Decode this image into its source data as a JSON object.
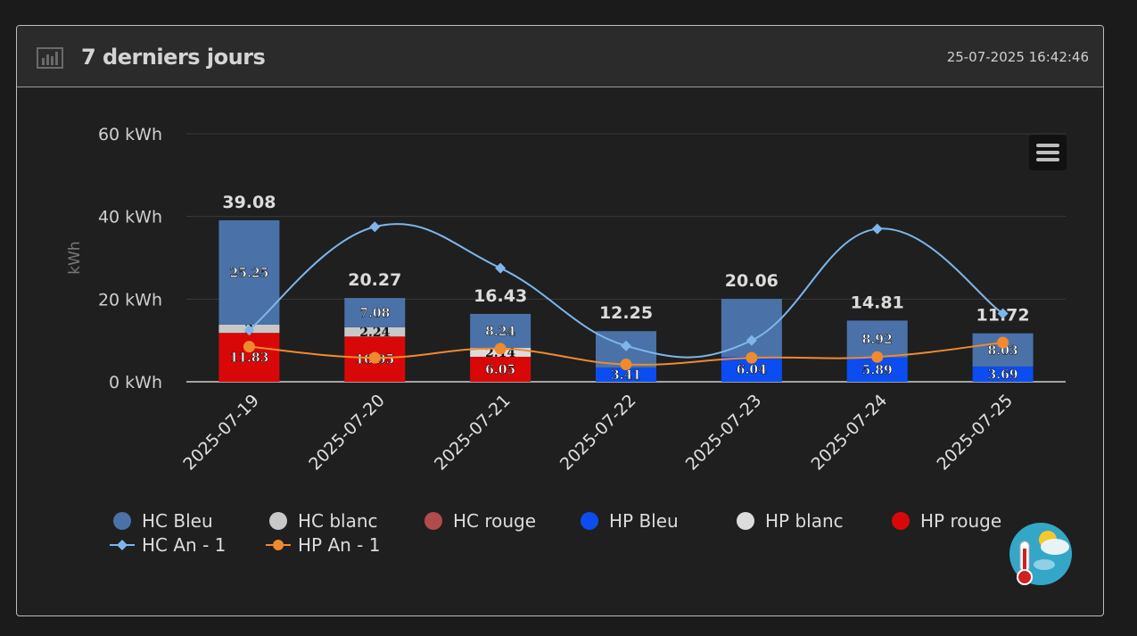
{
  "header": {
    "title": "7 derniers jours",
    "timestamp": "25-07-2025 16:42:46",
    "icon": "bar-chart-icon"
  },
  "toolbar": {
    "menu_icon": "hamburger-menu-icon"
  },
  "weather_icon": "thermometer-weather-icon",
  "colors": {
    "hc_bleu": "#4a72a8",
    "hc_blanc": "#c8c8c8",
    "hc_rouge": "#b24b4b",
    "hp_bleu": "#0b4df0",
    "hp_blanc": "#dcdcdc",
    "hp_rouge": "#d90808",
    "hc_an1": "#7eb6ec",
    "hp_an1": "#f08a2e"
  },
  "chart_data": {
    "type": "bar",
    "stacked": true,
    "categories": [
      "2025-07-19",
      "2025-07-20",
      "2025-07-21",
      "2025-07-22",
      "2025-07-23",
      "2025-07-24",
      "2025-07-25"
    ],
    "ylabel": "kWh",
    "ylim": [
      0,
      60
    ],
    "yticks": [
      0,
      20,
      40,
      60
    ],
    "ytick_labels": [
      "0 kWh",
      "20 kWh",
      "40 kWh",
      "60 kWh"
    ],
    "grid": true,
    "legend_position": "bottom",
    "totals": [
      39.08,
      20.27,
      16.43,
      12.25,
      20.06,
      14.81,
      11.72
    ],
    "total_labels": [
      "39.08",
      "20.27",
      "16.43",
      "12.25",
      "20.06",
      "14.81",
      "11.72"
    ],
    "series": [
      {
        "name": "HC Bleu",
        "type": "bar",
        "color_key": "hc_bleu",
        "values": [
          25.25,
          7.08,
          8.24,
          8.84,
          14.02,
          8.92,
          8.03
        ],
        "labels": [
          "25.25",
          "7.08",
          "8.24",
          "",
          "",
          "8.92",
          "8.03"
        ]
      },
      {
        "name": "HC blanc",
        "type": "bar",
        "color_key": "hc_blanc",
        "values": [
          2,
          2.24,
          0,
          0,
          0,
          0,
          0
        ],
        "labels": [
          "2",
          "2.24",
          "",
          "",
          "",
          "",
          ""
        ]
      },
      {
        "name": "HC rouge",
        "type": "bar",
        "color_key": "hc_rouge",
        "values": [
          0,
          0,
          0,
          0,
          0,
          0,
          0
        ],
        "labels": [
          "",
          "",
          "",
          "",
          "",
          "",
          ""
        ]
      },
      {
        "name": "HP Bleu",
        "type": "bar",
        "color_key": "hp_bleu",
        "values": [
          0,
          0,
          0,
          3.41,
          6.04,
          5.89,
          3.69
        ],
        "labels": [
          "",
          "",
          "",
          "3.41",
          "6.04",
          "5.89",
          "3.69"
        ]
      },
      {
        "name": "HP blanc",
        "type": "bar",
        "color_key": "hp_blanc",
        "values": [
          0,
          0,
          2.14,
          0,
          0,
          0,
          0
        ],
        "labels": [
          "",
          "",
          "2.14",
          "",
          "",
          "",
          ""
        ]
      },
      {
        "name": "HP rouge",
        "type": "bar",
        "color_key": "hp_rouge",
        "values": [
          11.83,
          10.95,
          6.05,
          0,
          0,
          0,
          0
        ],
        "labels": [
          "11.83",
          "10.95",
          "6.05",
          "",
          "",
          "",
          ""
        ]
      },
      {
        "name": "HC An - 1",
        "type": "line",
        "color_key": "hc_an1",
        "marker": "diamond",
        "values": [
          12.5,
          37.5,
          27.5,
          8.7,
          10,
          37,
          16.5
        ]
      },
      {
        "name": "HP An - 1",
        "type": "line",
        "color_key": "hp_an1",
        "marker": "circle",
        "values": [
          8.5,
          5.8,
          8,
          4.2,
          5.8,
          6,
          9.5
        ]
      }
    ],
    "legend": [
      "HC Bleu",
      "HC blanc",
      "HC rouge",
      "HP Bleu",
      "HP blanc",
      "HP rouge",
      "HC An - 1",
      "HP An - 1"
    ]
  }
}
